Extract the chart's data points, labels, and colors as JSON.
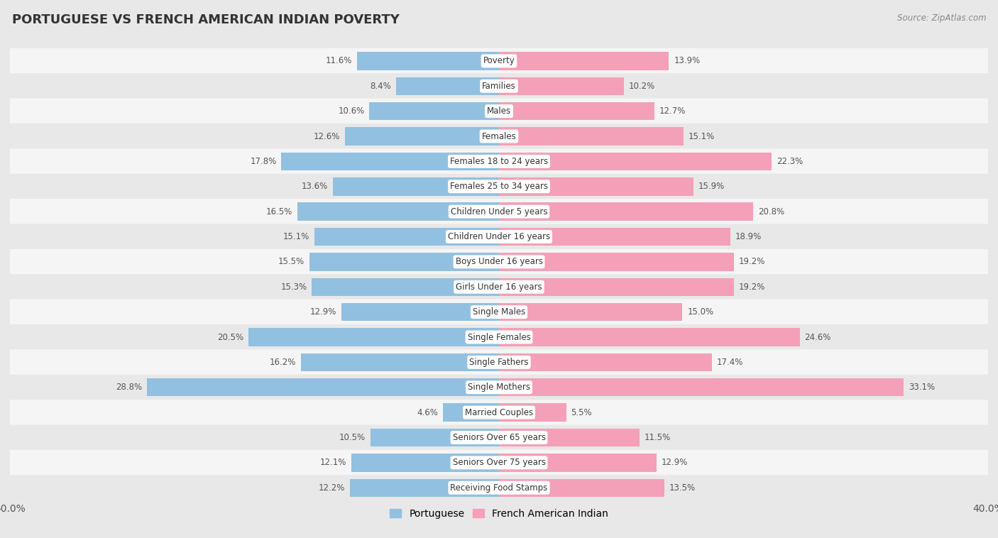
{
  "title": "PORTUGUESE VS FRENCH AMERICAN INDIAN POVERTY",
  "source": "Source: ZipAtlas.com",
  "categories": [
    "Poverty",
    "Families",
    "Males",
    "Females",
    "Females 18 to 24 years",
    "Females 25 to 34 years",
    "Children Under 5 years",
    "Children Under 16 years",
    "Boys Under 16 years",
    "Girls Under 16 years",
    "Single Males",
    "Single Females",
    "Single Fathers",
    "Single Mothers",
    "Married Couples",
    "Seniors Over 65 years",
    "Seniors Over 75 years",
    "Receiving Food Stamps"
  ],
  "portuguese": [
    11.6,
    8.4,
    10.6,
    12.6,
    17.8,
    13.6,
    16.5,
    15.1,
    15.5,
    15.3,
    12.9,
    20.5,
    16.2,
    28.8,
    4.6,
    10.5,
    12.1,
    12.2
  ],
  "french_american_indian": [
    13.9,
    10.2,
    12.7,
    15.1,
    22.3,
    15.9,
    20.8,
    18.9,
    19.2,
    19.2,
    15.0,
    24.6,
    17.4,
    33.1,
    5.5,
    11.5,
    12.9,
    13.5
  ],
  "portuguese_color": "#92C0E0",
  "french_color": "#F4A0B8",
  "background_color": "#e8e8e8",
  "row_color_even": "#f5f5f5",
  "row_color_odd": "#e8e8e8",
  "axis_limit": 40.0,
  "bar_height": 0.72,
  "legend_portuguese": "Portuguese",
  "legend_french": "French American Indian"
}
